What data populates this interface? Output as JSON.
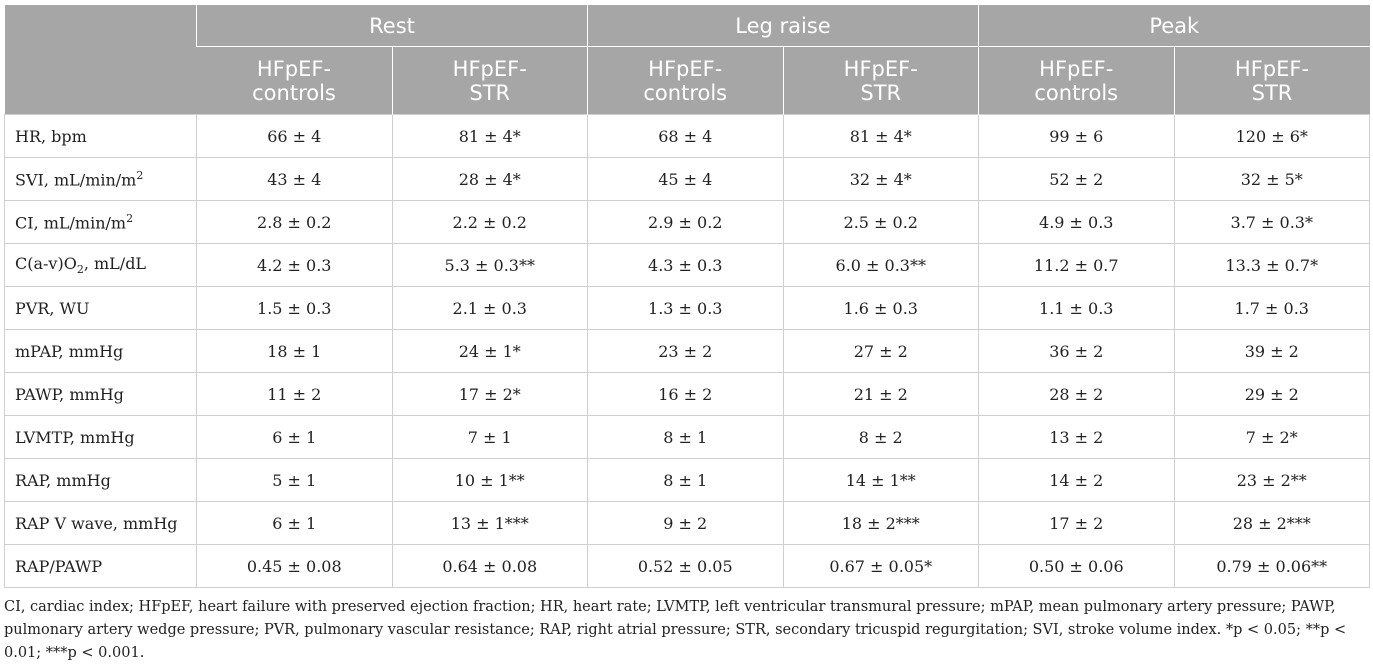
{
  "table": {
    "groups": [
      "Rest",
      "Leg raise",
      "Peak"
    ],
    "subcolumns": [
      "HFpEF-\ncontrols",
      "HFpEF-\nSTR",
      "HFpEF-\ncontrols",
      "HFpEF-\nSTR",
      "HFpEF-\ncontrols",
      "HFpEF-\nSTR"
    ],
    "rows": [
      {
        "label": "HR, bpm",
        "values": [
          "66 ± 4",
          "81 ± 4*",
          "68 ± 4",
          "81 ± 4*",
          "99 ± 6",
          "120 ± 6*"
        ]
      },
      {
        "label_main": "SVI, mL/min/m",
        "label_sup": "2",
        "values": [
          "43 ± 4",
          "28 ± 4*",
          "45 ± 4",
          "32 ± 4*",
          "52 ± 2",
          "32 ± 5*"
        ]
      },
      {
        "label_main": "CI, mL/min/m",
        "label_sup": "2",
        "values": [
          "2.8 ± 0.2",
          "2.2 ± 0.2",
          "2.9 ± 0.2",
          "2.5 ± 0.2",
          "4.9 ± 0.3",
          "3.7 ± 0.3*"
        ]
      },
      {
        "label_main": "C(a-v)O",
        "label_sub": "2",
        "label_tail": ", mL/dL",
        "values": [
          "4.2 ± 0.3",
          "5.3 ± 0.3**",
          "4.3 ± 0.3",
          "6.0 ± 0.3**",
          "11.2 ± 0.7",
          "13.3 ± 0.7*"
        ]
      },
      {
        "label": "PVR, WU",
        "values": [
          "1.5 ± 0.3",
          "2.1 ± 0.3",
          "1.3 ± 0.3",
          "1.6 ± 0.3",
          "1.1 ± 0.3",
          "1.7 ± 0.3"
        ]
      },
      {
        "label": "mPAP, mmHg",
        "values": [
          "18 ± 1",
          "24 ± 1*",
          "23 ± 2",
          "27 ± 2",
          "36 ± 2",
          "39 ± 2"
        ]
      },
      {
        "label": "PAWP, mmHg",
        "values": [
          "11 ± 2",
          "17 ± 2*",
          "16 ± 2",
          "21 ± 2",
          "28 ± 2",
          "29 ± 2"
        ]
      },
      {
        "label": "LVMTP, mmHg",
        "values": [
          "6 ± 1",
          "7 ± 1",
          "8 ± 1",
          "8 ± 2",
          "13 ± 2",
          "7 ± 2*"
        ]
      },
      {
        "label": "RAP, mmHg",
        "values": [
          "5 ± 1",
          "10 ± 1**",
          "8 ± 1",
          "14 ± 1**",
          "14 ± 2",
          "23 ± 2**"
        ]
      },
      {
        "label": "RAP V wave, mmHg",
        "values": [
          "6 ± 1",
          "13 ± 1***",
          "9 ± 2",
          "18 ± 2***",
          "17 ± 2",
          "28 ± 2***"
        ]
      },
      {
        "label": "RAP/PAWP",
        "values": [
          "0.45 ± 0.08",
          "0.64 ± 0.08",
          "0.52 ± 0.05",
          "0.67 ± 0.05*",
          "0.50 ± 0.06",
          "0.79 ± 0.06**"
        ]
      }
    ]
  },
  "footnote": "CI, cardiac index; HFpEF, heart failure with preserved ejection fraction; HR, heart rate; LVMTP, left ventricular transmural pressure; mPAP, mean pulmonary artery pressure; PAWP, pulmonary artery wedge pressure; PVR, pulmonary vascular resistance; RAP, right atrial pressure; STR, secondary tricuspid regurgitation; SVI, stroke volume index. *p < 0.05; **p < 0.01; ***p < 0.001."
}
